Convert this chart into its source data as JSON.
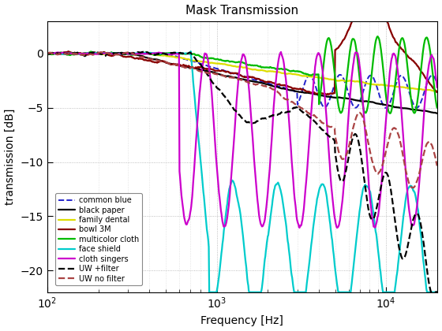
{
  "title": "Mask Transmission",
  "xlabel": "Frequency [Hz]",
  "ylabel": "transmission [dB]",
  "xlim": [
    100,
    20000
  ],
  "ylim": [
    -22,
    3
  ],
  "yticks": [
    0,
    -5,
    -10,
    -15,
    -20
  ],
  "series": [
    {
      "label": "common blue",
      "color": "#2222CC",
      "lw": 1.4,
      "ls": "--"
    },
    {
      "label": "black paper",
      "color": "#000000",
      "lw": 1.6,
      "ls": "-"
    },
    {
      "label": "family dental",
      "color": "#DDDD00",
      "lw": 1.6,
      "ls": "-"
    },
    {
      "label": "bowl 3M",
      "color": "#880000",
      "lw": 1.6,
      "ls": "-"
    },
    {
      "label": "multicolor cloth",
      "color": "#00BB00",
      "lw": 1.6,
      "ls": "-"
    },
    {
      "label": "face shield",
      "color": "#00CCCC",
      "lw": 1.6,
      "ls": "-"
    },
    {
      "label": "cloth singers",
      "color": "#CC00CC",
      "lw": 1.6,
      "ls": "-"
    },
    {
      "label": "UW +filter",
      "color": "#000000",
      "lw": 1.6,
      "ls": "--"
    },
    {
      "label": "UW no filter",
      "color": "#AA4444",
      "lw": 1.6,
      "ls": "--"
    }
  ],
  "background": "#ffffff",
  "grid_color": "#999999"
}
